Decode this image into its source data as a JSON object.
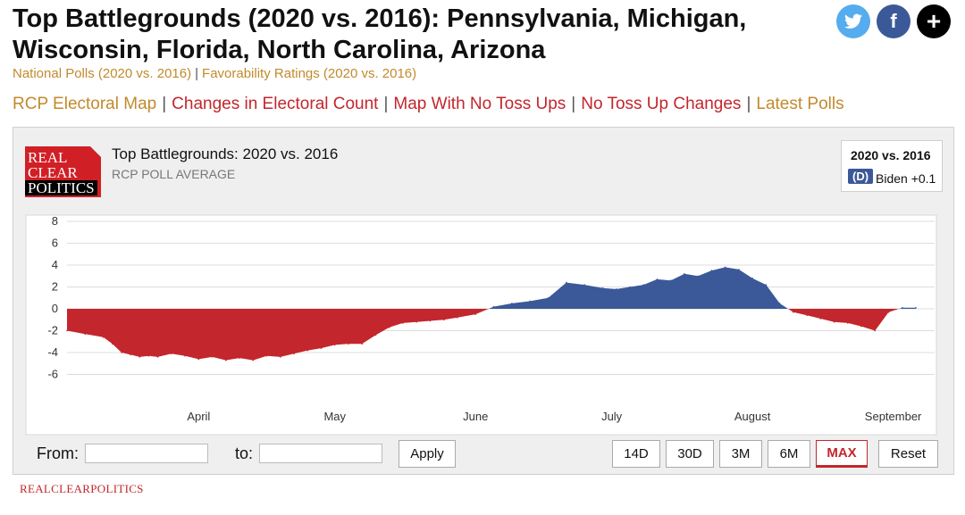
{
  "page": {
    "title": "Top Battlegrounds (2020 vs. 2016): Pennsylvania, Michigan, Wisconsin, Florida, North Carolina, Arizona"
  },
  "subnav": {
    "national_polls": "National Polls (2020 vs. 2016)",
    "separator": "|",
    "favorability": "Favorability Ratings (2020 vs. 2016)"
  },
  "topnav": {
    "items": [
      "RCP Electoral Map",
      "Changes in Electoral Count",
      "Map With No Toss Ups",
      "No Toss Up Changes",
      "Latest Polls"
    ],
    "separator": "|"
  },
  "social": {
    "twitter": "twitter-icon",
    "facebook_glyph": "f",
    "share_glyph": "+"
  },
  "logo": {
    "line1": "REAL",
    "line2": "CLEAR",
    "line3": "POLITICS"
  },
  "chart": {
    "title": "Top Battlegrounds: 2020 vs. 2016",
    "subtitle": "RCP POLL AVERAGE",
    "legend_title": "2020 vs. 2016",
    "legend_badge": "(D)",
    "legend_label": "Biden +0.1"
  },
  "controls": {
    "from_label": "From:",
    "to_label": "to:",
    "from_value": "",
    "to_value": "",
    "apply": "Apply",
    "ranges": [
      "14D",
      "30D",
      "3M",
      "6M",
      "MAX"
    ],
    "active_range": "MAX",
    "reset": "Reset"
  },
  "footer": {
    "brand": "REALCLEARPOLITICS"
  },
  "colors": {
    "dem": "#3b5998",
    "rep": "#c3262c",
    "accent_gold": "#c28a2c"
  },
  "chart_data": {
    "type": "area",
    "title": "Top Battlegrounds: 2020 vs. 2016",
    "subtitle": "RCP POLL AVERAGE",
    "xlabel": "",
    "ylabel": "",
    "ylim": [
      -8,
      8
    ],
    "yticks": [
      8,
      6,
      4,
      2,
      0,
      -2,
      -4,
      -6
    ],
    "xticks": [
      "April",
      "May",
      "June",
      "July",
      "August",
      "September"
    ],
    "xtick_dates": [
      "2020-04-01",
      "2020-05-01",
      "2020-06-01",
      "2020-07-01",
      "2020-08-01",
      "2020-09-01"
    ],
    "grid": true,
    "fill_colors": {
      "positive": "#3b5998",
      "negative": "#c3262c"
    },
    "series": [
      {
        "x": [
          "2020-03-03",
          "2020-03-07",
          "2020-03-11",
          "2020-03-13",
          "2020-03-15",
          "2020-03-17",
          "2020-03-19",
          "2020-03-21",
          "2020-03-23",
          "2020-03-26",
          "2020-03-29",
          "2020-04-01",
          "2020-04-04",
          "2020-04-07",
          "2020-04-10",
          "2020-04-13",
          "2020-04-16",
          "2020-04-19",
          "2020-04-22",
          "2020-04-25",
          "2020-04-28",
          "2020-05-01",
          "2020-05-04",
          "2020-05-07",
          "2020-05-10",
          "2020-05-13",
          "2020-05-16",
          "2020-05-19",
          "2020-05-22",
          "2020-05-25",
          "2020-05-28",
          "2020-06-01",
          "2020-06-05",
          "2020-06-09",
          "2020-06-13",
          "2020-06-17",
          "2020-06-21",
          "2020-06-25",
          "2020-06-29",
          "2020-07-02",
          "2020-07-05",
          "2020-07-08",
          "2020-07-11",
          "2020-07-14",
          "2020-07-17",
          "2020-07-20",
          "2020-07-23",
          "2020-07-26",
          "2020-07-29",
          "2020-08-01",
          "2020-08-04",
          "2020-08-07",
          "2020-08-10",
          "2020-08-13",
          "2020-08-16",
          "2020-08-19",
          "2020-08-22",
          "2020-08-25",
          "2020-08-28",
          "2020-08-31",
          "2020-09-03",
          "2020-09-06"
        ],
        "y": [
          -2.0,
          -2.3,
          -2.6,
          -3.2,
          -4.0,
          -4.2,
          -4.4,
          -4.3,
          -4.4,
          -4.1,
          -4.3,
          -4.6,
          -4.4,
          -4.7,
          -4.5,
          -4.7,
          -4.3,
          -4.4,
          -4.1,
          -3.8,
          -3.6,
          -3.3,
          -3.2,
          -3.2,
          -2.4,
          -1.7,
          -1.3,
          -1.2,
          -1.1,
          -1.0,
          -0.8,
          -0.5,
          0.2,
          0.5,
          0.7,
          1.0,
          2.4,
          2.2,
          1.9,
          1.8,
          2.0,
          2.2,
          2.7,
          2.6,
          3.2,
          3.0,
          3.5,
          3.8,
          3.6,
          2.8,
          2.2,
          0.5,
          -0.3,
          -0.6,
          -0.9,
          -1.2,
          -1.3,
          -1.6,
          -2.0,
          -0.3,
          0.1,
          0.1
        ]
      }
    ]
  }
}
